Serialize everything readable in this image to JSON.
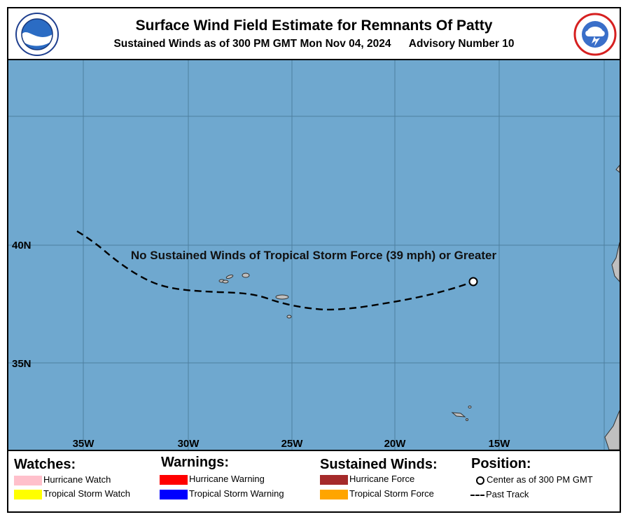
{
  "header": {
    "title": "Surface Wind Field Estimate for Remnants Of Patty",
    "subtitle": "Sustained Winds as of 300 PM GMT Mon Nov 04, 2024      Advisory Number 10"
  },
  "map": {
    "message": "No Sustained Winds of Tropical Storm Force (39 mph) or Greater",
    "lat_labels": [
      "40N",
      "35N"
    ],
    "lon_labels": [
      "35W",
      "30W",
      "25W",
      "20W",
      "15W"
    ],
    "water_color": "#6fa8cf",
    "land_color": "#bfbfbf",
    "grid_color": "#4d7f9f",
    "track_color": "#000000"
  },
  "legend": {
    "watches": {
      "heading": "Watches:",
      "hurricane_watch": "Hurricane Watch",
      "hurricane_watch_color": "#ffc0cb",
      "ts_watch": "Tropical Storm Watch",
      "ts_watch_color": "#ffff00"
    },
    "warnings": {
      "heading": "Warnings:",
      "hurricane_warning": "Hurricane Warning",
      "hurricane_warning_color": "#ff0000",
      "ts_warning": "Tropical Storm Warning",
      "ts_warning_color": "#0000ff"
    },
    "winds": {
      "heading": "Sustained Winds:",
      "hurricane_force": "Hurricane Force",
      "hurricane_force_color": "#a52a2a",
      "ts_force": "Tropical Storm Force",
      "ts_force_color": "#ffa500"
    },
    "position": {
      "heading": "Position:",
      "center": "Center as of 300 PM GMT",
      "past_track": "Past Track"
    }
  }
}
